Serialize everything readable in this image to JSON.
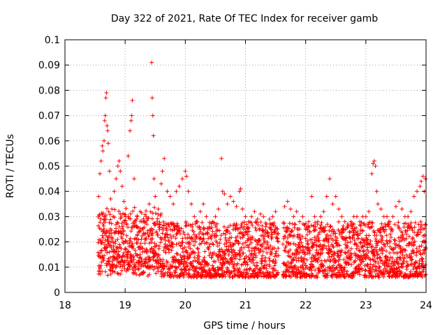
{
  "chart_data": {
    "type": "scatter",
    "title": "Day 322 of 2021, Rate Of TEC Index for receiver gamb",
    "xlabel": "GPS time / hours",
    "ylabel": "ROTI / TECUs",
    "xlim": [
      18,
      24
    ],
    "ylim": [
      0,
      0.1
    ],
    "xticks": [
      18,
      19,
      20,
      21,
      22,
      23,
      24
    ],
    "xtick_labels": [
      "18",
      "19",
      "20",
      "21",
      "22",
      "23",
      "24"
    ],
    "yticks": [
      0,
      0.01,
      0.02,
      0.03,
      0.04,
      0.05,
      0.06,
      0.07,
      0.08,
      0.09,
      0.1
    ],
    "ytick_labels": [
      "0",
      "0.01",
      "0.02",
      "0.03",
      "0.04",
      "0.05",
      "0.06",
      "0.07",
      "0.08",
      "0.09",
      "0.1"
    ],
    "grid": true,
    "marker": "plus",
    "series_color": "#ff0000",
    "data_range_x": [
      18.55,
      24.0
    ],
    "gap_x": [
      21.55,
      21.62
    ],
    "series": [
      {
        "name": "ROTI",
        "points": [
          [
            18.56,
            0.038
          ],
          [
            18.58,
            0.047
          ],
          [
            18.6,
            0.052
          ],
          [
            18.62,
            0.058
          ],
          [
            18.63,
            0.056
          ],
          [
            18.65,
            0.06
          ],
          [
            18.66,
            0.068
          ],
          [
            18.67,
            0.07
          ],
          [
            18.68,
            0.077
          ],
          [
            18.69,
            0.079
          ],
          [
            18.7,
            0.066
          ],
          [
            18.71,
            0.064
          ],
          [
            18.72,
            0.059
          ],
          [
            18.74,
            0.048
          ],
          [
            18.76,
            0.037
          ],
          [
            18.78,
            0.033
          ],
          [
            18.8,
            0.03
          ],
          [
            18.82,
            0.04
          ],
          [
            18.85,
            0.045
          ],
          [
            18.88,
            0.05
          ],
          [
            18.9,
            0.052
          ],
          [
            18.92,
            0.048
          ],
          [
            18.95,
            0.042
          ],
          [
            18.98,
            0.036
          ],
          [
            19.05,
            0.054
          ],
          [
            19.08,
            0.064
          ],
          [
            19.1,
            0.068
          ],
          [
            19.11,
            0.07
          ],
          [
            19.12,
            0.076
          ],
          [
            19.15,
            0.045
          ],
          [
            19.2,
            0.03
          ],
          [
            19.25,
            0.032
          ],
          [
            19.3,
            0.028
          ],
          [
            19.35,
            0.03
          ],
          [
            19.4,
            0.035
          ],
          [
            19.44,
            0.091
          ],
          [
            19.45,
            0.077
          ],
          [
            19.46,
            0.07
          ],
          [
            19.47,
            0.062
          ],
          [
            19.48,
            0.045
          ],
          [
            19.5,
            0.038
          ],
          [
            19.55,
            0.033
          ],
          [
            19.6,
            0.043
          ],
          [
            19.62,
            0.048
          ],
          [
            19.65,
            0.053
          ],
          [
            19.7,
            0.04
          ],
          [
            19.75,
            0.038
          ],
          [
            19.8,
            0.035
          ],
          [
            19.85,
            0.04
          ],
          [
            19.9,
            0.042
          ],
          [
            19.95,
            0.045
          ],
          [
            20.0,
            0.048
          ],
          [
            20.02,
            0.046
          ],
          [
            20.05,
            0.04
          ],
          [
            20.1,
            0.035
          ],
          [
            20.15,
            0.03
          ],
          [
            20.2,
            0.028
          ],
          [
            20.25,
            0.032
          ],
          [
            20.3,
            0.035
          ],
          [
            20.35,
            0.03
          ],
          [
            20.4,
            0.026
          ],
          [
            20.45,
            0.028
          ],
          [
            20.5,
            0.03
          ],
          [
            20.55,
            0.033
          ],
          [
            20.6,
            0.053
          ],
          [
            20.62,
            0.04
          ],
          [
            20.65,
            0.039
          ],
          [
            20.7,
            0.035
          ],
          [
            20.75,
            0.038
          ],
          [
            20.8,
            0.036
          ],
          [
            20.85,
            0.034
          ],
          [
            20.9,
            0.04
          ],
          [
            20.92,
            0.041
          ],
          [
            20.95,
            0.033
          ],
          [
            21.0,
            0.03
          ],
          [
            21.05,
            0.028
          ],
          [
            21.1,
            0.03
          ],
          [
            21.15,
            0.032
          ],
          [
            21.2,
            0.029
          ],
          [
            21.25,
            0.031
          ],
          [
            21.3,
            0.03
          ],
          [
            21.35,
            0.027
          ],
          [
            21.4,
            0.029
          ],
          [
            21.45,
            0.03
          ],
          [
            21.5,
            0.032
          ],
          [
            21.65,
            0.034
          ],
          [
            21.7,
            0.036
          ],
          [
            21.75,
            0.033
          ],
          [
            21.8,
            0.03
          ],
          [
            21.85,
            0.032
          ],
          [
            21.9,
            0.028
          ],
          [
            21.95,
            0.03
          ],
          [
            22.0,
            0.025
          ],
          [
            22.05,
            0.028
          ],
          [
            22.1,
            0.038
          ],
          [
            22.15,
            0.03
          ],
          [
            22.2,
            0.028
          ],
          [
            22.25,
            0.03
          ],
          [
            22.3,
            0.032
          ],
          [
            22.35,
            0.038
          ],
          [
            22.4,
            0.045
          ],
          [
            22.45,
            0.035
          ],
          [
            22.5,
            0.038
          ],
          [
            22.55,
            0.033
          ],
          [
            22.6,
            0.03
          ],
          [
            22.65,
            0.028
          ],
          [
            22.7,
            0.026
          ],
          [
            22.75,
            0.028
          ],
          [
            22.8,
            0.03
          ],
          [
            22.85,
            0.03
          ],
          [
            22.9,
            0.028
          ],
          [
            22.95,
            0.03
          ],
          [
            23.0,
            0.03
          ],
          [
            23.05,
            0.032
          ],
          [
            23.1,
            0.047
          ],
          [
            23.12,
            0.051
          ],
          [
            23.14,
            0.052
          ],
          [
            23.16,
            0.05
          ],
          [
            23.18,
            0.04
          ],
          [
            23.2,
            0.035
          ],
          [
            23.25,
            0.033
          ],
          [
            23.3,
            0.03
          ],
          [
            23.35,
            0.03
          ],
          [
            23.4,
            0.028
          ],
          [
            23.45,
            0.03
          ],
          [
            23.5,
            0.034
          ],
          [
            23.55,
            0.036
          ],
          [
            23.6,
            0.033
          ],
          [
            23.65,
            0.03
          ],
          [
            23.7,
            0.03
          ],
          [
            23.75,
            0.032
          ],
          [
            23.8,
            0.038
          ],
          [
            23.85,
            0.04
          ],
          [
            23.9,
            0.042
          ],
          [
            23.92,
            0.044
          ],
          [
            23.95,
            0.046
          ],
          [
            23.97,
            0.04
          ],
          [
            23.99,
            0.045
          ]
        ]
      }
    ],
    "band_note": "Dense cloud of points between about 0.005 and 0.03 TECU across the data range; generated procedurally by the drawing script."
  }
}
